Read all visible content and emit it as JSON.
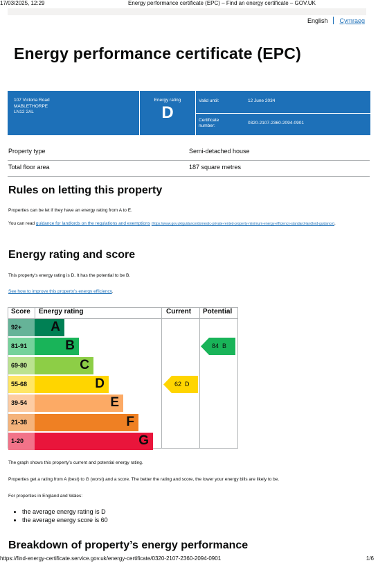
{
  "print_header": {
    "datetime": "17/03/2025, 12:29",
    "title": "Energy performance certificate (EPC) – Find an energy certificate – GOV.UK"
  },
  "lang": {
    "english": "English",
    "welsh": "Cymraeg"
  },
  "page_title": "Energy performance certificate (EPC)",
  "summary": {
    "address": [
      "107 Victoria Road",
      "MABLETHORPE",
      "LN12 2AL"
    ],
    "rating_label": "Energy rating",
    "rating": "D",
    "valid_until_label": "Valid until:",
    "valid_until": "12 June 2034",
    "cert_label": "Certificate number:",
    "cert_number": "0320-2107-2360-2094-0901"
  },
  "property": [
    {
      "key": "Property type",
      "value": "Semi-detached house"
    },
    {
      "key": "Total floor area",
      "value": "187 square metres"
    }
  ],
  "letting": {
    "heading": "Rules on letting this property",
    "p1": "Properties can be let if they have an energy rating from A to E.",
    "p2_pre": "You can read ",
    "p2_link": "guidance for landlords on the regulations and exemptions",
    "p2_url": "(https://www.gov.uk/guidance/domestic-private-rented-property-minimum-energy-efficiency-standard-landlord-guidance)",
    "p2_post": "."
  },
  "rating_section": {
    "heading": "Energy rating and score",
    "p1": "This property’s energy rating is D. It has the potential to be B.",
    "link": "See how to improve this property’s energy efficiency",
    "link_post": "."
  },
  "chart_data": {
    "type": "table",
    "headers": {
      "score": "Score",
      "rating": "Energy rating",
      "current": "Current",
      "potential": "Potential"
    },
    "bands": [
      {
        "range": "92+",
        "letter": "A",
        "color": "#008054",
        "score_bg": "#66b398"
      },
      {
        "range": "81-91",
        "letter": "B",
        "color": "#19b459",
        "score_bg": "#75d29b"
      },
      {
        "range": "69-80",
        "letter": "C",
        "color": "#8dce46",
        "score_bg": "#bbe290"
      },
      {
        "range": "55-68",
        "letter": "D",
        "color": "#ffd500",
        "score_bg": "#ffe666"
      },
      {
        "range": "39-54",
        "letter": "E",
        "color": "#fcaa65",
        "score_bg": "#fdcca3"
      },
      {
        "range": "21-38",
        "letter": "F",
        "color": "#ef8023",
        "score_bg": "#f5b37b"
      },
      {
        "range": "1-20",
        "letter": "G",
        "color": "#e9153b",
        "score_bg": "#f27389"
      }
    ],
    "current": {
      "score": 62,
      "letter": "D",
      "label": "62  D",
      "color": "#ffd500"
    },
    "potential": {
      "score": 84,
      "letter": "B",
      "label": "84  B",
      "color": "#19b459"
    }
  },
  "after_chart": {
    "p1": "The graph shows this property’s current and potential energy rating.",
    "p2": "Properties get a rating from A (best) to G (worst) and a score. The better the rating and score, the lower your energy bills are likely to be.",
    "p3": "For properties in England and Wales:",
    "bullets": [
      "the average energy rating is D",
      "the average energy score is 60"
    ]
  },
  "breakdown_heading": "Breakdown of property’s energy performance",
  "footer": {
    "url": "https://find-energy-certificate.service.gov.uk/energy-certificate/0320-2107-2360-2094-0901",
    "page": "1/6"
  }
}
